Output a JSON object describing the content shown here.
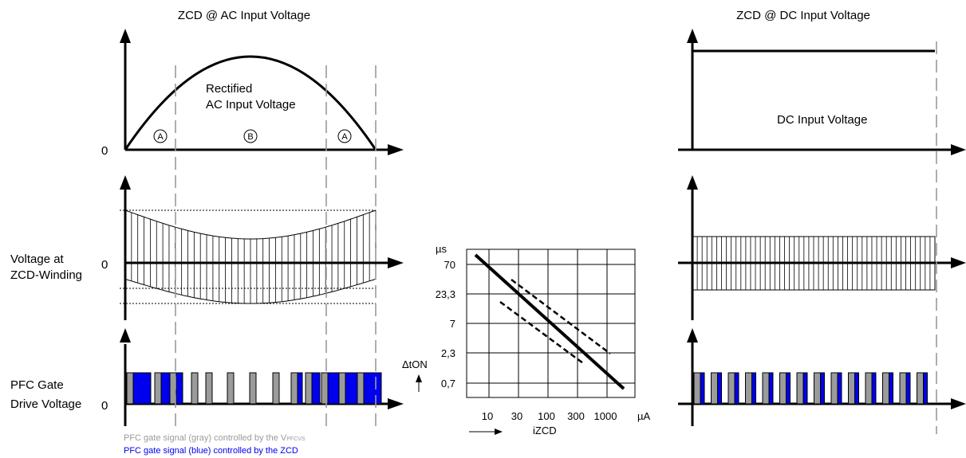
{
  "left_panel": {
    "title": "ZCD @ AC Input Voltage",
    "top_graph": {
      "zero_label": "0",
      "curve_label_line1": "Rectified",
      "curve_label_line2": "AC Input Voltage",
      "regions": [
        "A",
        "B",
        "A"
      ]
    },
    "middle_graph": {
      "label_line1": "Voltage at",
      "label_line2": "ZCD-Winding",
      "zero_label": "0"
    },
    "bottom_graph": {
      "label_line1": "PFC Gate",
      "label_line2": "Drive Voltage",
      "zero_label": "0"
    },
    "legend": {
      "gray_text_prefix": "PFC gate signal (gray) controlled by the V",
      "gray_text_subscript": "PFCVS",
      "blue_text": "PFC gate signal (blue) controlled by the ZCD",
      "gray_color": "#9b9b9b",
      "blue_color": "#0000ee"
    }
  },
  "center_chart": {
    "y_unit": "µs",
    "y_ticks": [
      "70",
      "23,3",
      "7",
      "2,3",
      "0,7"
    ],
    "x_ticks": [
      "10",
      "30",
      "100",
      "300",
      "1000"
    ],
    "x_unit": "µA",
    "x_label": "iZCD",
    "y_label": "ΔtON"
  },
  "right_panel": {
    "title": "ZCD @ DC Input Voltage",
    "top_graph": {
      "label": "DC Input Voltage"
    }
  },
  "colors": {
    "gate_gray": "#9b9b9b",
    "gate_blue": "#0000ee"
  }
}
